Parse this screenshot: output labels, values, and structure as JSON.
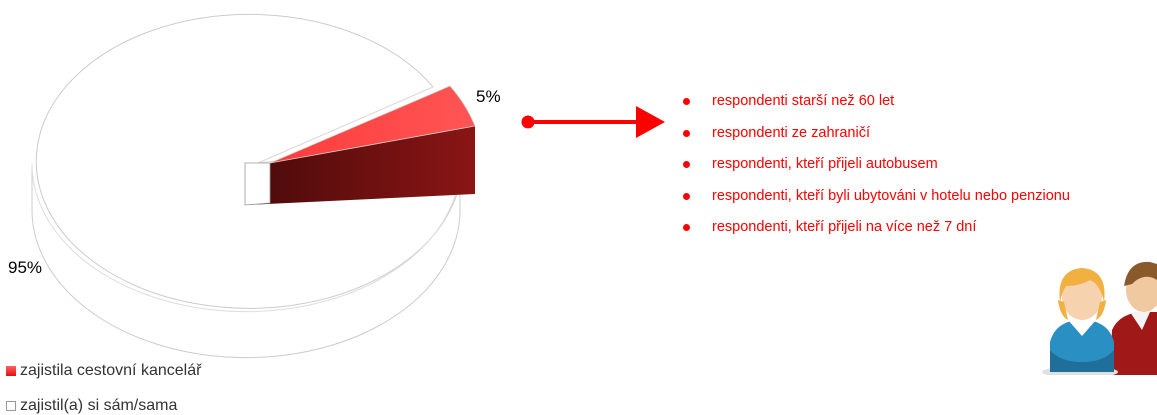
{
  "chart_data": {
    "type": "pie",
    "title": "",
    "slices": [
      {
        "label": "zajistila cestovní kancelář",
        "value": 5,
        "value_label": "5%",
        "color": "#ff2020"
      },
      {
        "label": "zajistil(a) si sám/sama",
        "value": 95,
        "value_label": "95%",
        "color": "#ffffff"
      }
    ],
    "style": "3d-exploded",
    "legend_position": "bottom-left"
  },
  "callout": {
    "arrow_color": "#ff0000",
    "items": [
      "respondenti starší než 60 let",
      "respondenti ze zahraničí",
      "respondenti, kteří přijeli autobusem",
      "respondenti, kteří byli ubytováni v hotelu nebo penzionu",
      "respondenti, kteří přijeli na více než 7 dní"
    ]
  },
  "illustration": {
    "icon": "people-icon"
  }
}
